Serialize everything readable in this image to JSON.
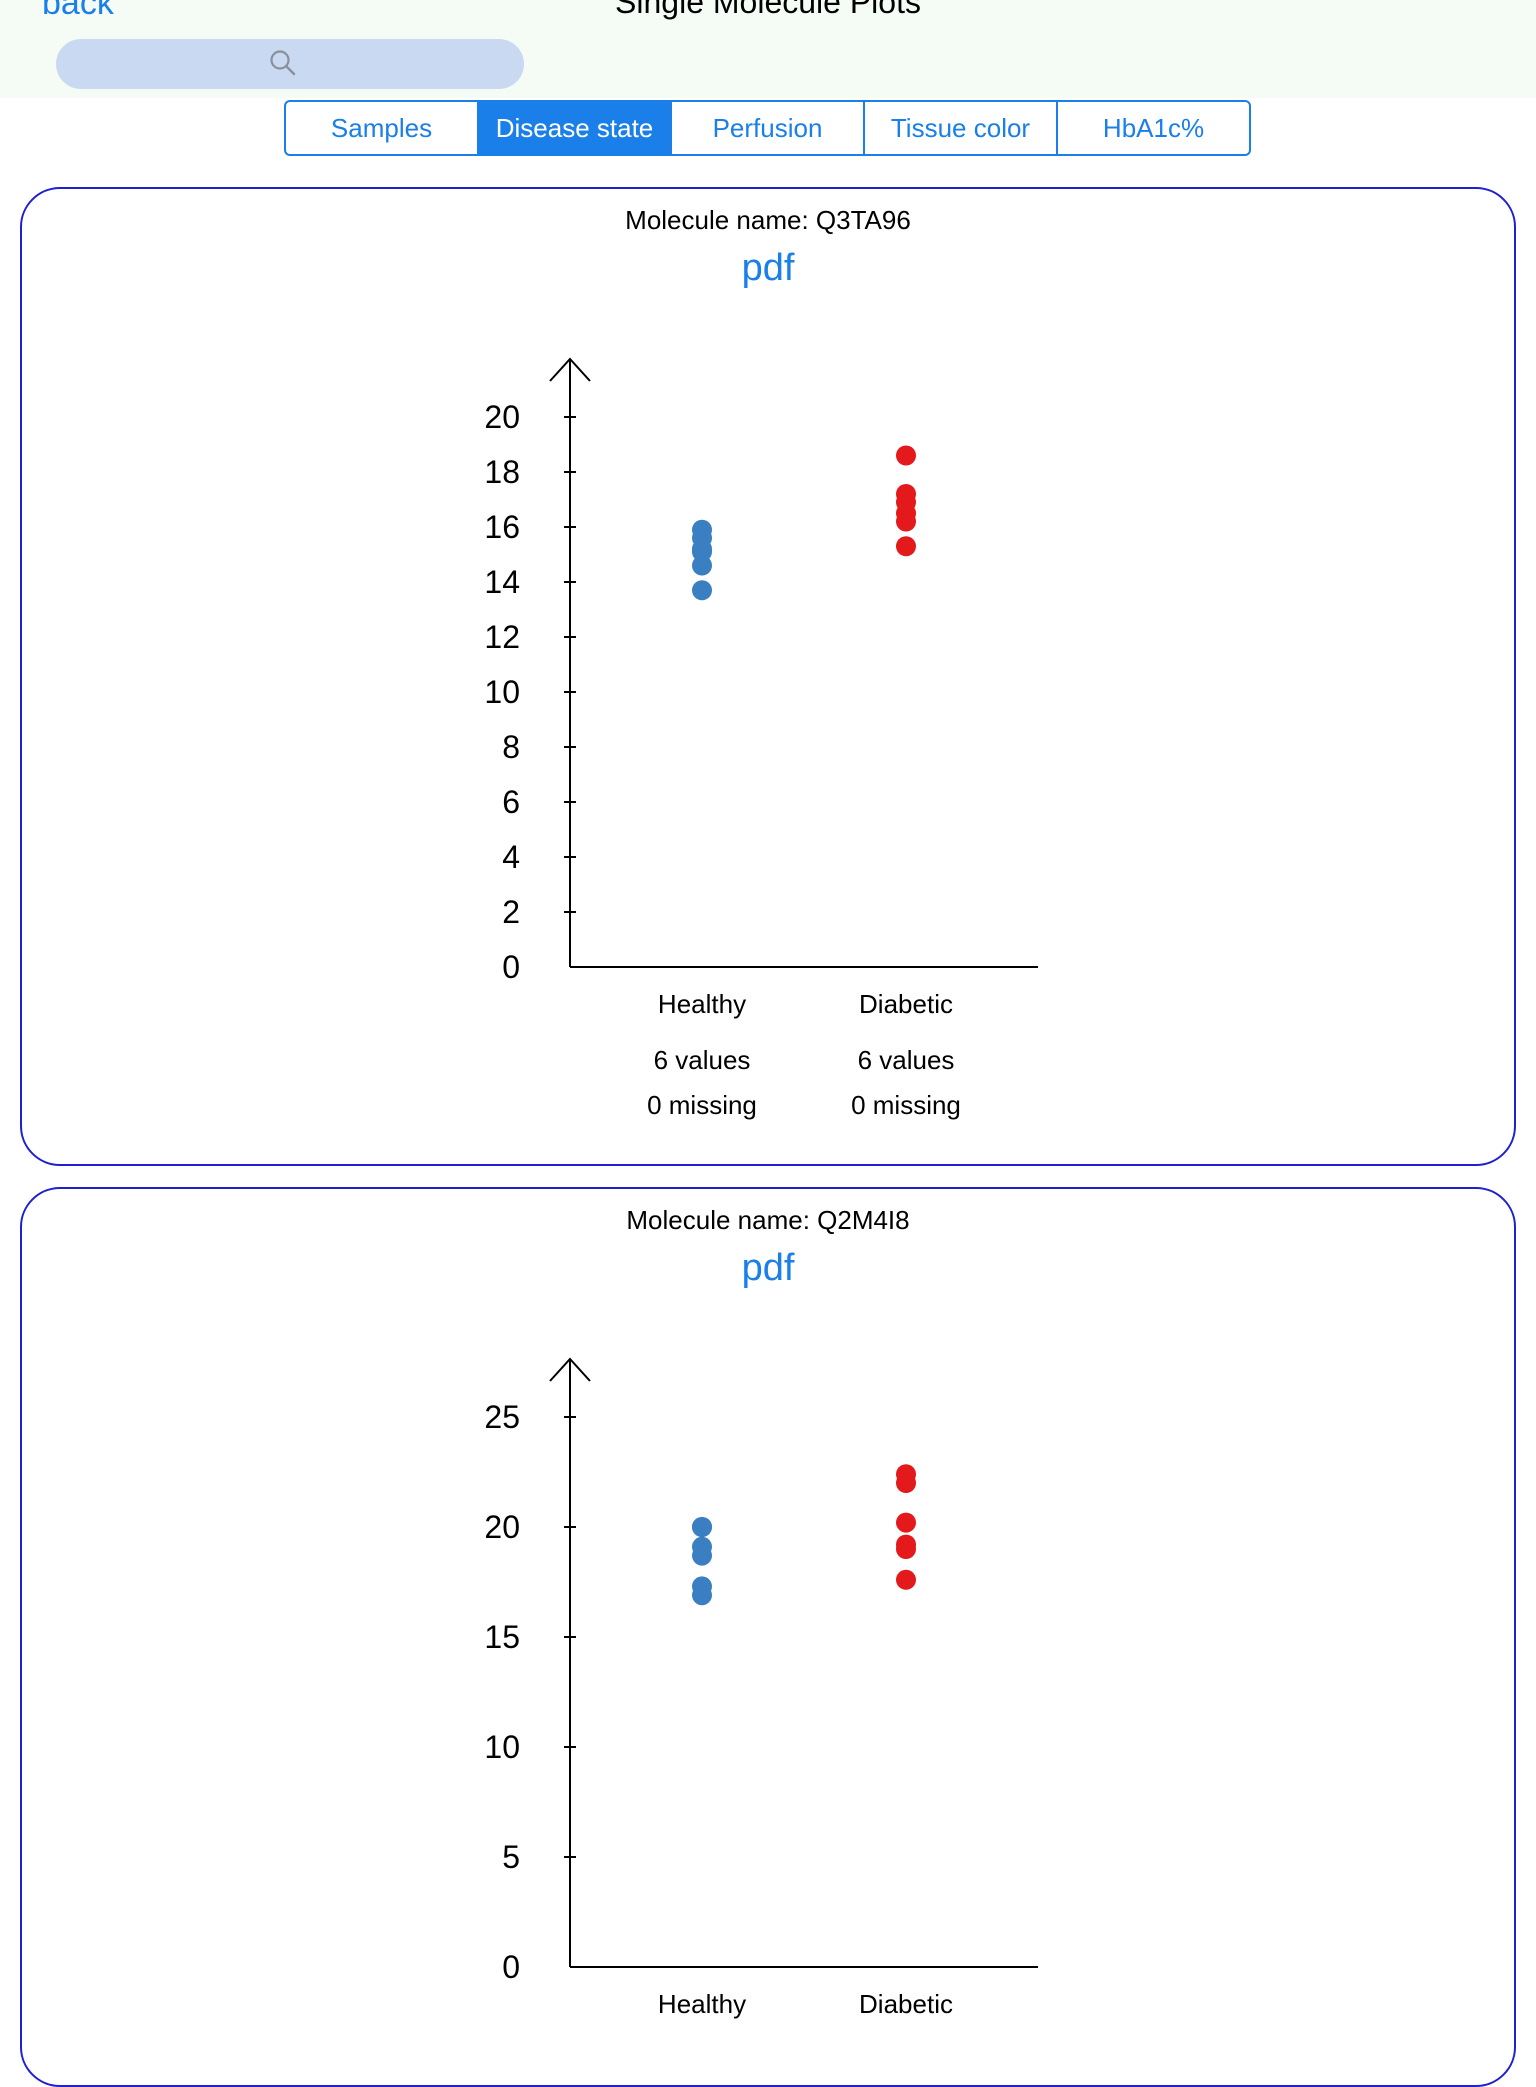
{
  "header": {
    "back_label": "back",
    "title": "Single Molecule Plots",
    "search": {
      "placeholder": "",
      "value": "",
      "icon": "magnifier-icon"
    }
  },
  "tabs": [
    {
      "label": "Samples",
      "active": false
    },
    {
      "label": "Disease state",
      "active": true
    },
    {
      "label": "Perfusion",
      "active": false
    },
    {
      "label": "Tissue color",
      "active": false
    },
    {
      "label": "HbA1c%",
      "active": false
    }
  ],
  "colors": {
    "accent": "#1a7fe8",
    "healthy": "#3a7fc1",
    "diabetic": "#e3191c",
    "card_border": "#2020d0"
  },
  "cards": [
    {
      "molecule_label": "Molecule name: Q3TA96",
      "pdf_label": "pdf",
      "footer": {
        "Healthy": [
          "6 values",
          "0 missing"
        ],
        "Diabetic": [
          "6 values",
          "0 missing"
        ]
      }
    },
    {
      "molecule_label": "Molecule name: Q2M4I8",
      "pdf_label": "pdf",
      "footer": null
    }
  ],
  "chart_data": [
    {
      "type": "scatter",
      "categories": [
        "Healthy",
        "Diabetic"
      ],
      "ylim": [
        0,
        20
      ],
      "yticks": [
        0,
        2,
        4,
        6,
        8,
        10,
        12,
        14,
        16,
        18,
        20
      ],
      "series": [
        {
          "category": "Healthy",
          "values": [
            13.7,
            14.6,
            15.1,
            15.2,
            15.6,
            15.9
          ]
        },
        {
          "category": "Diabetic",
          "values": [
            15.3,
            16.2,
            16.5,
            16.9,
            17.2,
            18.6
          ]
        }
      ]
    },
    {
      "type": "scatter",
      "categories": [
        "Healthy",
        "Diabetic"
      ],
      "ylim": [
        0,
        25
      ],
      "yticks": [
        0,
        5,
        10,
        15,
        20,
        25
      ],
      "series": [
        {
          "category": "Healthy",
          "values": [
            16.9,
            17.3,
            18.7,
            19.1,
            20.0,
            20.0
          ]
        },
        {
          "category": "Diabetic",
          "values": [
            17.6,
            19.0,
            19.2,
            20.2,
            22.0,
            22.4
          ]
        }
      ]
    }
  ]
}
